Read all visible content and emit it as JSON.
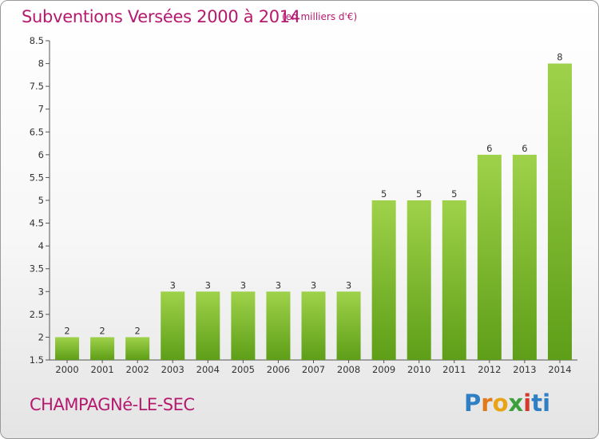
{
  "title": "Subventions Versées 2000 à 2014",
  "unit": "(en milliers d'€)",
  "commune": "CHAMPAGNé-LE-SEC",
  "logo": {
    "text": "Proxiti",
    "letters": [
      "P",
      "r",
      "o",
      "x",
      "i",
      "t",
      "i"
    ]
  },
  "colors": {
    "title": "#b5196e",
    "bar_top": "#9fd24a",
    "bar_bottom": "#5e9e18",
    "axis": "#555555"
  },
  "chart_data": {
    "type": "bar",
    "categories": [
      "2000",
      "2001",
      "2002",
      "2003",
      "2004",
      "2005",
      "2006",
      "2007",
      "2008",
      "2009",
      "2010",
      "2011",
      "2012",
      "2013",
      "2014"
    ],
    "values": [
      2,
      2,
      2,
      3,
      3,
      3,
      3,
      3,
      3,
      5,
      5,
      5,
      6,
      6,
      8
    ],
    "ylim": [
      1.5,
      8.5
    ],
    "yticks": [
      "1.5",
      "2",
      "2.5",
      "3",
      "3.5",
      "4",
      "4.5",
      "5",
      "5.5",
      "6",
      "6.5",
      "7",
      "7.5",
      "8",
      "8.5"
    ],
    "grid": false,
    "xlabel": "",
    "ylabel": ""
  }
}
